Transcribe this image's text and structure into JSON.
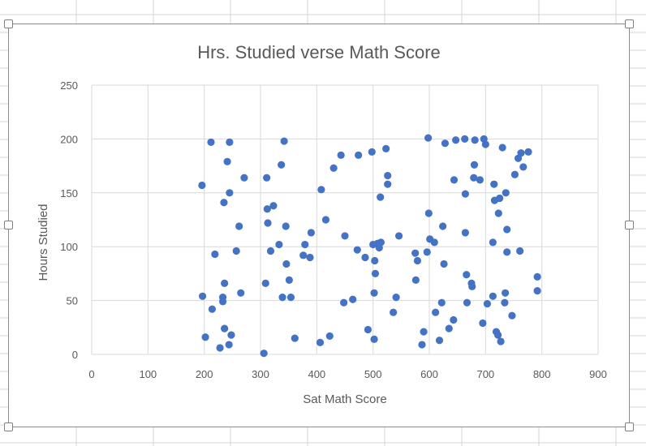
{
  "chart_data": {
    "type": "scatter",
    "title": "Hrs. Studied verse Math Score",
    "xlabel": "Sat Math Score",
    "ylabel": "Hours Studied",
    "xlim": [
      0,
      900
    ],
    "ylim": [
      0,
      250
    ],
    "xticks": [
      0,
      100,
      200,
      300,
      400,
      500,
      600,
      700,
      800,
      900
    ],
    "yticks": [
      0,
      50,
      100,
      150,
      200,
      250
    ],
    "grid": true,
    "legend": "none",
    "marker_color": "#4472C4",
    "series": [
      {
        "points": [
          [
            196,
            157
          ],
          [
            197,
            54
          ],
          [
            202,
            16
          ],
          [
            212,
            197
          ],
          [
            214,
            42
          ],
          [
            219,
            93
          ],
          [
            228,
            6
          ],
          [
            233,
            53
          ],
          [
            233,
            49
          ],
          [
            235,
            141
          ],
          [
            236,
            66
          ],
          [
            236,
            24
          ],
          [
            241,
            179
          ],
          [
            244,
            9
          ],
          [
            245,
            197
          ],
          [
            245,
            150
          ],
          [
            248,
            18
          ],
          [
            257,
            96
          ],
          [
            262,
            119
          ],
          [
            265,
            57
          ],
          [
            271,
            164
          ],
          [
            306,
            1
          ],
          [
            309,
            66
          ],
          [
            311,
            164
          ],
          [
            312,
            135
          ],
          [
            313,
            122
          ],
          [
            318,
            96
          ],
          [
            323,
            138
          ],
          [
            333,
            102
          ],
          [
            337,
            176
          ],
          [
            339,
            53
          ],
          [
            342,
            198
          ],
          [
            345,
            119
          ],
          [
            346,
            84
          ],
          [
            351,
            69
          ],
          [
            354,
            53
          ],
          [
            361,
            15
          ],
          [
            376,
            92
          ],
          [
            379,
            102
          ],
          [
            388,
            90
          ],
          [
            390,
            113
          ],
          [
            406,
            11
          ],
          [
            408,
            153
          ],
          [
            416,
            125
          ],
          [
            423,
            17
          ],
          [
            430,
            173
          ],
          [
            443,
            185
          ],
          [
            448,
            48
          ],
          [
            450,
            110
          ],
          [
            464,
            51
          ],
          [
            472,
            97
          ],
          [
            474,
            185
          ],
          [
            486,
            90
          ],
          [
            491,
            23
          ],
          [
            498,
            188
          ],
          [
            500,
            102
          ],
          [
            502,
            14
          ],
          [
            502,
            57
          ],
          [
            503,
            87
          ],
          [
            504,
            75
          ],
          [
            508,
            103
          ],
          [
            511,
            99
          ],
          [
            513,
            146
          ],
          [
            514,
            104
          ],
          [
            523,
            191
          ],
          [
            526,
            158
          ],
          [
            526,
            166
          ],
          [
            536,
            39
          ],
          [
            541,
            53
          ],
          [
            546,
            110
          ],
          [
            575,
            94
          ],
          [
            576,
            69
          ],
          [
            579,
            87
          ],
          [
            587,
            9
          ],
          [
            590,
            21
          ],
          [
            596,
            95
          ],
          [
            598,
            201
          ],
          [
            599,
            131
          ],
          [
            601,
            107
          ],
          [
            609,
            104
          ],
          [
            611,
            39
          ],
          [
            618,
            13
          ],
          [
            622,
            48
          ],
          [
            624,
            119
          ],
          [
            626,
            84
          ],
          [
            628,
            196
          ],
          [
            635,
            24
          ],
          [
            643,
            32
          ],
          [
            644,
            162
          ],
          [
            647,
            199
          ],
          [
            663,
            200
          ],
          [
            664,
            149
          ],
          [
            664,
            113
          ],
          [
            666,
            74
          ],
          [
            667,
            48
          ],
          [
            675,
            66
          ],
          [
            676,
            63
          ],
          [
            679,
            164
          ],
          [
            680,
            176
          ],
          [
            681,
            199
          ],
          [
            690,
            162
          ],
          [
            695,
            29
          ],
          [
            697,
            200
          ],
          [
            700,
            195
          ],
          [
            703,
            47
          ],
          [
            713,
            54
          ],
          [
            713,
            104
          ],
          [
            715,
            158
          ],
          [
            716,
            143
          ],
          [
            719,
            21
          ],
          [
            722,
            18
          ],
          [
            723,
            131
          ],
          [
            725,
            145
          ],
          [
            727,
            12
          ],
          [
            730,
            192
          ],
          [
            734,
            48
          ],
          [
            735,
            57
          ],
          [
            736,
            150
          ],
          [
            738,
            116
          ],
          [
            738,
            95
          ],
          [
            747,
            36
          ],
          [
            752,
            167
          ],
          [
            758,
            182
          ],
          [
            761,
            96
          ],
          [
            763,
            187
          ],
          [
            767,
            174
          ],
          [
            776,
            188
          ],
          [
            792,
            72
          ],
          [
            792,
            59
          ]
        ]
      }
    ]
  }
}
